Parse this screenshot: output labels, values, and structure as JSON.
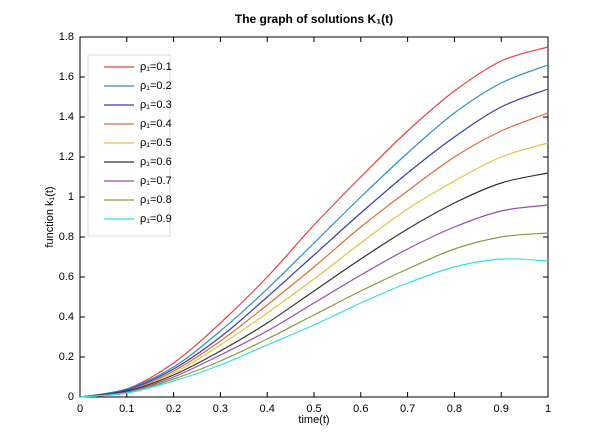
{
  "chart_data": {
    "type": "line",
    "title": "The graph of solutions K₁(t)",
    "x_label": "time(t)",
    "y_label": "function k₁(t)",
    "x": [
      0,
      0.1,
      0.2,
      0.3,
      0.4,
      0.5,
      0.6,
      0.7,
      0.8,
      0.9,
      1
    ],
    "series": [
      {
        "name": "ρ₁=0.1",
        "color": "#e8413e",
        "values": [
          0,
          0.04,
          0.17,
          0.37,
          0.6,
          0.86,
          1.1,
          1.33,
          1.53,
          1.68,
          1.75
        ]
      },
      {
        "name": "ρ₁=0.2",
        "color": "#2a8fc8",
        "values": [
          0,
          0.04,
          0.15,
          0.33,
          0.54,
          0.77,
          1.0,
          1.22,
          1.42,
          1.57,
          1.66
        ]
      },
      {
        "name": "ρ₁=0.3",
        "color": "#3a3ab8",
        "values": [
          0,
          0.035,
          0.14,
          0.3,
          0.5,
          0.71,
          0.92,
          1.12,
          1.3,
          1.45,
          1.54
        ]
      },
      {
        "name": "ρ₁=0.4",
        "color": "#e06a3a",
        "values": [
          0,
          0.03,
          0.13,
          0.28,
          0.46,
          0.65,
          0.85,
          1.03,
          1.2,
          1.33,
          1.42
        ]
      },
      {
        "name": "ρ₁=0.5",
        "color": "#e8c040",
        "values": [
          0,
          0.03,
          0.12,
          0.26,
          0.42,
          0.59,
          0.77,
          0.94,
          1.08,
          1.2,
          1.27
        ]
      },
      {
        "name": "ρ₁=0.6",
        "color": "#333333",
        "values": [
          0,
          0.03,
          0.11,
          0.23,
          0.37,
          0.53,
          0.69,
          0.84,
          0.97,
          1.07,
          1.12
        ]
      },
      {
        "name": "ρ₁=0.7",
        "color": "#9a4ab0",
        "values": [
          0,
          0.025,
          0.1,
          0.21,
          0.33,
          0.47,
          0.61,
          0.74,
          0.85,
          0.93,
          0.96
        ]
      },
      {
        "name": "ρ₁=0.8",
        "color": "#8a9a3a",
        "values": [
          0,
          0.02,
          0.09,
          0.18,
          0.29,
          0.41,
          0.53,
          0.64,
          0.74,
          0.8,
          0.82
        ]
      },
      {
        "name": "ρ₁=0.9",
        "color": "#33e0e0",
        "values": [
          0,
          0.02,
          0.08,
          0.16,
          0.26,
          0.36,
          0.47,
          0.57,
          0.65,
          0.69,
          0.68
        ]
      }
    ],
    "xlim": [
      0,
      1
    ],
    "xticks": [
      0,
      0.1,
      0.2,
      0.3,
      0.4,
      0.5,
      0.6,
      0.7,
      0.8,
      0.9,
      1
    ],
    "ylim": [
      0,
      1.8
    ],
    "yticks": [
      0,
      0.2,
      0.4,
      0.6,
      0.8,
      1,
      1.2,
      1.4,
      1.6,
      1.8
    ],
    "grid": false,
    "legend": "upper left"
  }
}
